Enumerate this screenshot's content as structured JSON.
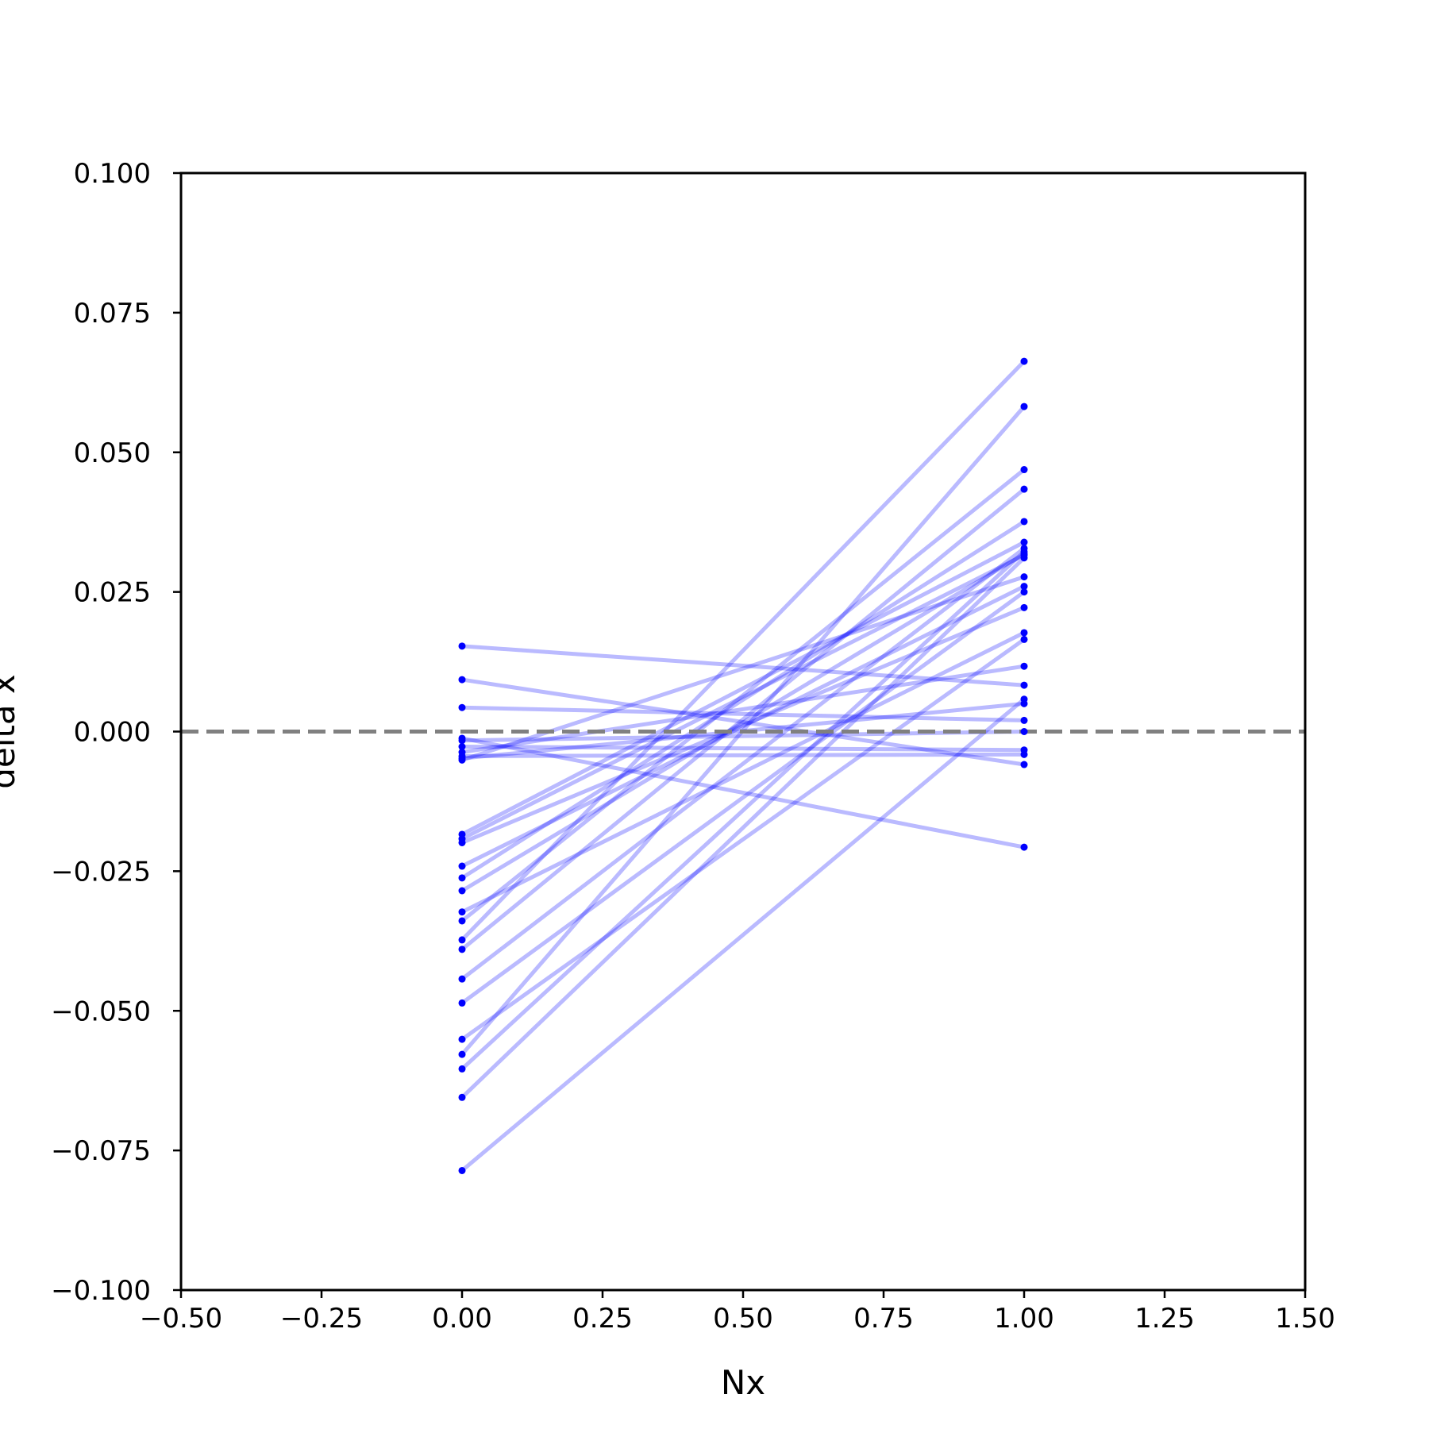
{
  "chart_data": {
    "type": "line",
    "xlabel": "Nx",
    "ylabel": "delta x",
    "xlim": [
      -0.5,
      1.5
    ],
    "ylim": [
      -0.1,
      0.1
    ],
    "xticks": [
      -0.5,
      -0.25,
      0.0,
      0.25,
      0.5,
      0.75,
      1.0,
      1.25,
      1.5
    ],
    "xtick_labels": [
      "−0.50",
      "−0.25",
      "0.00",
      "0.25",
      "0.50",
      "0.75",
      "1.00",
      "1.25",
      "1.50"
    ],
    "yticks": [
      -0.1,
      -0.075,
      -0.05,
      -0.025,
      0.0,
      0.025,
      0.05,
      0.075,
      0.1
    ],
    "ytick_labels": [
      "−0.100",
      "−0.075",
      "−0.050",
      "−0.025",
      "0.000",
      "0.025",
      "0.050",
      "0.075",
      "0.100"
    ],
    "grid": false,
    "reference_line": {
      "y": 0.0,
      "style": "dashed",
      "color": "#808080"
    },
    "line_color": "#0000ff",
    "line_opacity": 0.27,
    "marker_color": "#0000ff",
    "x": [
      0,
      1
    ],
    "pairs": [
      [
        -0.0786,
        0.0058
      ],
      [
        -0.0655,
        0.0311
      ],
      [
        -0.0604,
        0.0322
      ],
      [
        -0.0578,
        0.0582
      ],
      [
        -0.0551,
        0.0165
      ],
      [
        -0.0486,
        0.025
      ],
      [
        -0.0443,
        0.0328
      ],
      [
        -0.039,
        0.0434
      ],
      [
        -0.0373,
        0.0663
      ],
      [
        -0.0339,
        0.0469
      ],
      [
        -0.0323,
        0.0177
      ],
      [
        -0.0285,
        0.0318
      ],
      [
        -0.0262,
        0.0376
      ],
      [
        -0.0241,
        0.026
      ],
      [
        -0.0199,
        0.0222
      ],
      [
        -0.0192,
        0.0316
      ],
      [
        -0.0184,
        0.0339
      ],
      [
        -0.0051,
        0.0277
      ],
      [
        -0.0037,
        0.0117
      ],
      [
        -0.0027,
        -0.0033
      ],
      [
        -0.0016,
        0.0
      ],
      [
        -0.0012,
        -0.0207
      ],
      [
        0.0043,
        0.002
      ],
      [
        0.0093,
        -0.0059
      ],
      [
        0.0153,
        0.0083
      ],
      [
        -0.0044,
        -0.0041
      ],
      [
        -0.0048,
        0.005
      ]
    ]
  }
}
